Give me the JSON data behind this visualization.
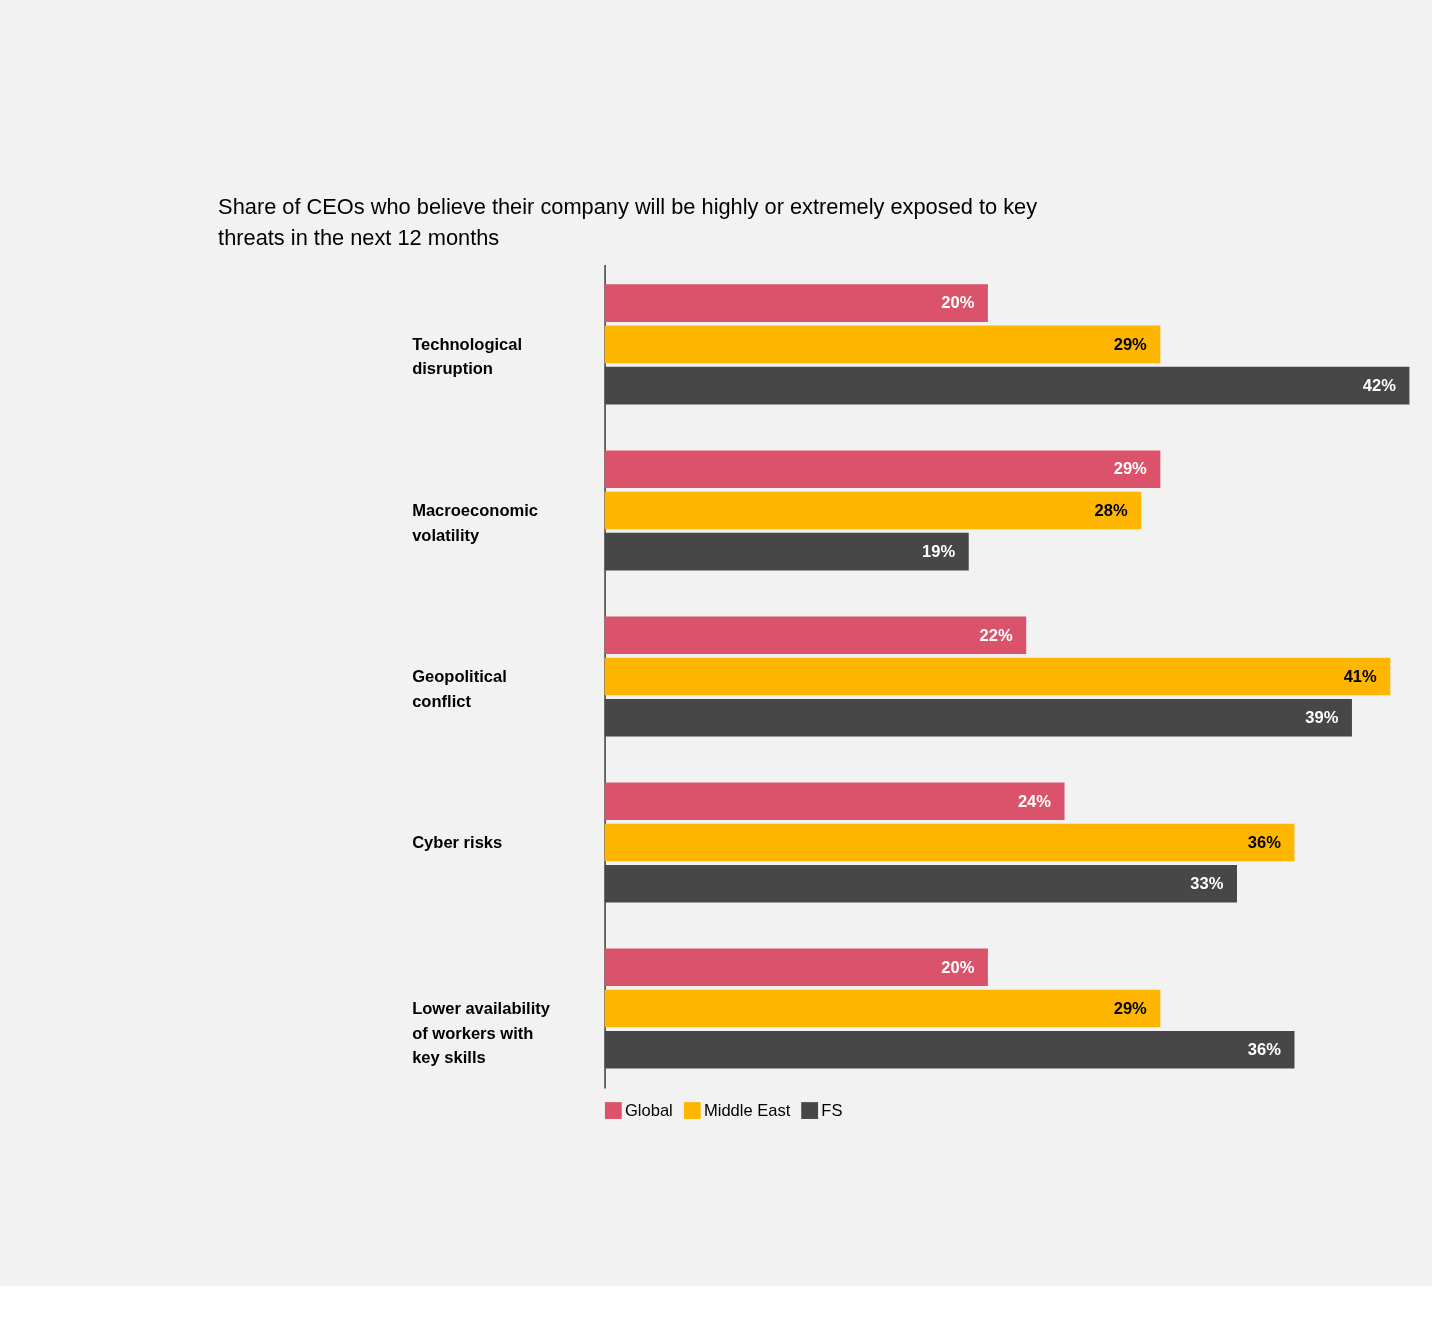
{
  "chart_data": {
    "type": "bar",
    "orientation": "horizontal",
    "title": "Share of CEOs who believe their company will be highly or extremely exposed to key threats in the next 12 months",
    "categories": [
      "Technological disruption",
      "Macroeconomic volatility",
      "Geopolitical conflict",
      "Cyber risks",
      "Lower availability of workers with key skills"
    ],
    "series": [
      {
        "name": "Global",
        "color": "#db536a",
        "values": [
          20,
          29,
          22,
          24,
          20
        ],
        "value_labels": [
          "20%",
          "29%",
          "22%",
          "24%",
          "20%"
        ]
      },
      {
        "name": "Middle East",
        "color": "#ffb600",
        "values": [
          29,
          28,
          41,
          36,
          29
        ],
        "value_labels": [
          "29%",
          "28%",
          "41%",
          "36%",
          "29%"
        ]
      },
      {
        "name": "FS",
        "color": "#474747",
        "values": [
          42,
          19,
          39,
          33,
          36
        ],
        "value_labels": [
          "42%",
          "19%",
          "39%",
          "33%",
          "36%"
        ]
      }
    ],
    "legend": "bottom"
  }
}
